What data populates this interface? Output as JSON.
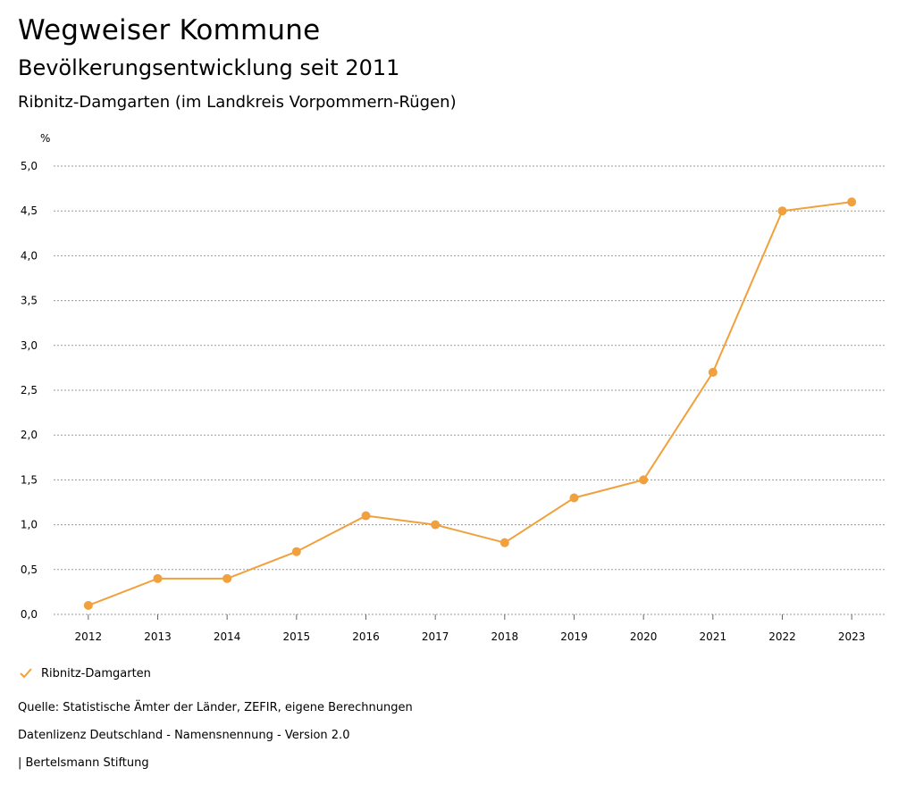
{
  "header": {
    "title": "Wegweiser Kommune",
    "subtitle": "Bevölkerungsentwicklung seit 2011",
    "region": "Ribnitz-Damgarten (im Landkreis Vorpommern-Rügen)"
  },
  "legend": {
    "label": "Ribnitz-Damgarten",
    "icon": "checkmark-icon"
  },
  "footer": {
    "source": "Quelle: Statistische Ämter der Länder, ZEFIR, eigene Berechnungen",
    "license": "Datenlizenz Deutschland - Namensnennung - Version 2.0",
    "publisher": "| Bertelsmann Stiftung"
  },
  "chart_data": {
    "type": "line",
    "title": "Bevölkerungsentwicklung seit 2011",
    "ylabel": "%",
    "xlabel": "",
    "ylim": [
      0,
      5
    ],
    "yticks": [
      "0,0",
      "0,5",
      "1,0",
      "1,5",
      "2,0",
      "2,5",
      "3,0",
      "3,5",
      "4,0",
      "4,5",
      "5,0"
    ],
    "grid": true,
    "legend_position": "bottom-left",
    "color": "#f0a03c",
    "categories": [
      "2012",
      "2013",
      "2014",
      "2015",
      "2016",
      "2017",
      "2018",
      "2019",
      "2020",
      "2021",
      "2022",
      "2023"
    ],
    "series": [
      {
        "name": "Ribnitz-Damgarten",
        "values": [
          0.1,
          0.4,
          0.4,
          0.7,
          1.1,
          1.0,
          0.8,
          1.3,
          1.5,
          2.7,
          4.5,
          4.6
        ]
      }
    ]
  }
}
